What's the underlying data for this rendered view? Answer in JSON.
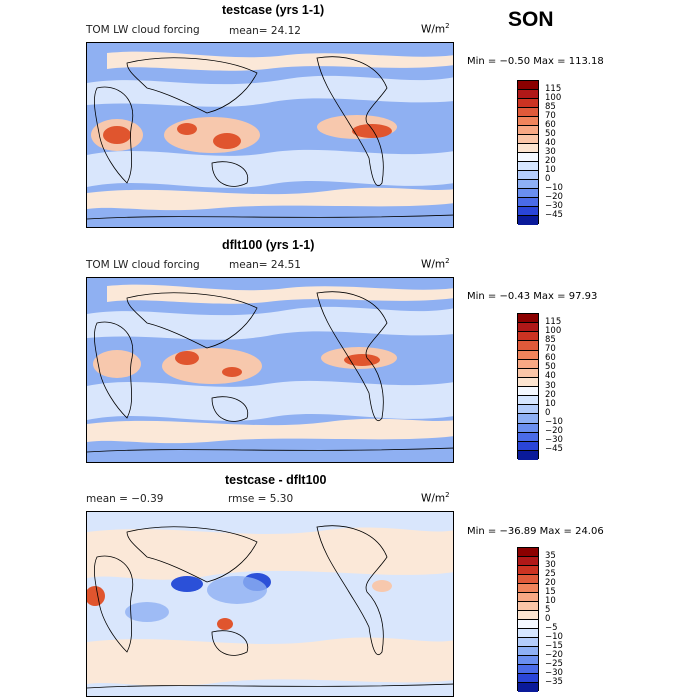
{
  "season": "SON",
  "panels": [
    {
      "title": "testcase (yrs 1-1)",
      "field_label": "TOM LW cloud forcing",
      "stat1": "mean=  24.12",
      "stat2": "",
      "units": "W/m",
      "units_exp": "2",
      "minmax": "Min =  −0.50 Max = 113.18",
      "colorbar": {
        "ticks": [
          "115",
          "100",
          "85",
          "70",
          "60",
          "50",
          "40",
          "30",
          "20",
          "10",
          "0",
          "−10",
          "−20",
          "−30",
          "−45"
        ],
        "colors": [
          "#8b0000",
          "#b01818",
          "#cc3322",
          "#e05a3a",
          "#f0845c",
          "#f8a884",
          "#fbc6a8",
          "#fce4d0",
          "#f4f8ff",
          "#d6e6ff",
          "#b4cdfb",
          "#8eb0f5",
          "#6a8ff0",
          "#4a6be8",
          "#2a45d8",
          "#0a1a9a"
        ]
      }
    },
    {
      "title": "dflt100 (yrs 1-1)",
      "field_label": "TOM LW cloud forcing",
      "stat1": "mean=  24.51",
      "stat2": "",
      "units": "W/m",
      "units_exp": "2",
      "minmax": "Min =  −0.43 Max =  97.93",
      "colorbar": {
        "ticks": [
          "115",
          "100",
          "85",
          "70",
          "60",
          "50",
          "40",
          "30",
          "20",
          "10",
          "0",
          "−10",
          "−20",
          "−30",
          "−45"
        ],
        "colors": [
          "#8b0000",
          "#b01818",
          "#cc3322",
          "#e05a3a",
          "#f0845c",
          "#f8a884",
          "#fbc6a8",
          "#fce4d0",
          "#f4f8ff",
          "#d6e6ff",
          "#b4cdfb",
          "#8eb0f5",
          "#6a8ff0",
          "#4a6be8",
          "#2a45d8",
          "#0a1a9a"
        ]
      }
    },
    {
      "title": "testcase - dflt100",
      "field_label": "mean =  −0.39",
      "stat1": "rmse =   5.30",
      "stat2": "",
      "units": "W/m",
      "units_exp": "2",
      "minmax": "Min = −36.89 Max =  24.06",
      "colorbar": {
        "ticks": [
          "35",
          "30",
          "25",
          "20",
          "15",
          "10",
          "5",
          "0",
          "−5",
          "−10",
          "−15",
          "−20",
          "−25",
          "−30",
          "−35"
        ],
        "colors": [
          "#8b0000",
          "#b01818",
          "#cc3322",
          "#e05a3a",
          "#f0845c",
          "#f8a884",
          "#fbc6a8",
          "#fce4d0",
          "#f4f8ff",
          "#d6e6ff",
          "#b4cdfb",
          "#8eb0f5",
          "#6a8ff0",
          "#4a6be8",
          "#2a45d8",
          "#0a1a9a"
        ]
      }
    }
  ],
  "colors": {
    "ocean_base": "#8fb0f2",
    "land_line": "#000000",
    "warm": "#f7c8ad",
    "hot": "#e0552e",
    "pale": "#d9e6fc",
    "cream": "#fbe8d8",
    "deep_blue": "#2b50d8"
  }
}
